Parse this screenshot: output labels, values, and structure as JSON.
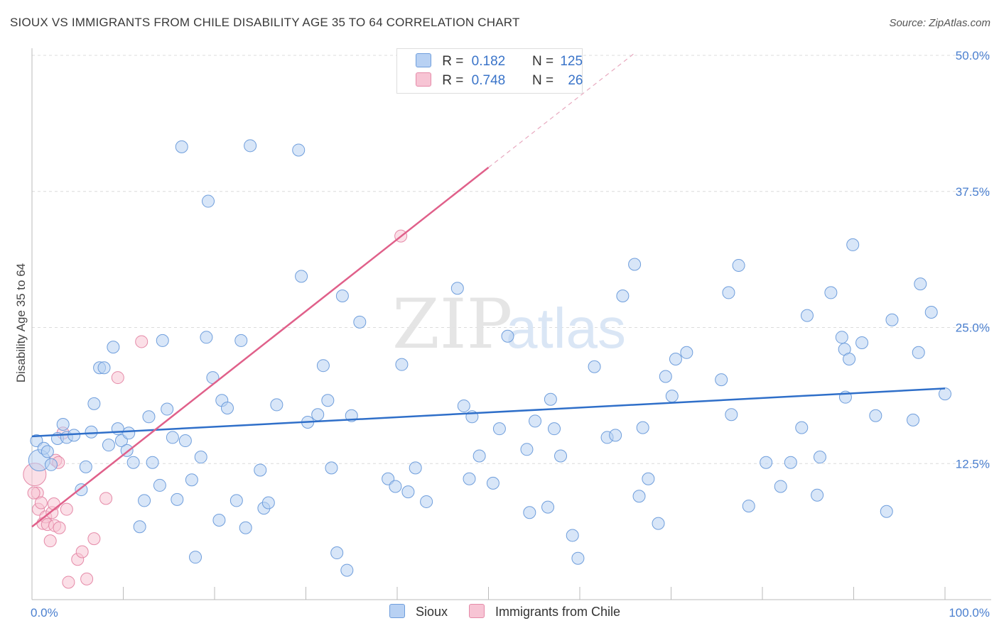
{
  "header": {
    "title": "SIOUX VS IMMIGRANTS FROM CHILE DISABILITY AGE 35 TO 64 CORRELATION CHART",
    "source": "Source: ZipAtlas.com"
  },
  "watermark": {
    "zip": "ZIP",
    "atlas": "atlas"
  },
  "legend": {
    "rows": [
      {
        "r_label": "R =",
        "r_value": "0.182",
        "n_label": "N =",
        "n_value": "125"
      },
      {
        "r_label": "R =",
        "r_value": "0.748",
        "n_label": "N =",
        "n_value": "26"
      }
    ]
  },
  "bottom_legend": {
    "sioux": "Sioux",
    "chile": "Immigrants from Chile"
  },
  "colors": {
    "sioux_fill": "#b8d1f3",
    "sioux_stroke": "#6f9edc",
    "sioux_line": "#2f6fc9",
    "chile_fill": "#f7c4d4",
    "chile_stroke": "#e58aa8",
    "chile_line": "#e0608a",
    "grid": "#dcdcdc",
    "tick_text": "#4a7fcf"
  },
  "chart_data": {
    "type": "scatter",
    "title": "SIOUX VS IMMIGRANTS FROM CHILE DISABILITY AGE 35 TO 64 CORRELATION CHART",
    "xlabel": "",
    "ylabel": "Disability Age 35 to 64",
    "xlim": [
      0,
      100
    ],
    "ylim": [
      0,
      50
    ],
    "x_tick_labels": [
      "0.0%",
      "100.0%"
    ],
    "y_ticks": [
      12.5,
      25.0,
      37.5,
      50.0
    ],
    "y_tick_labels": [
      "12.5%",
      "25.0%",
      "37.5%",
      "50.0%"
    ],
    "series": [
      {
        "name": "Sioux",
        "r": 0.182,
        "n": 125,
        "trend": {
          "x": [
            0,
            100
          ],
          "y": [
            15.0,
            19.4
          ]
        },
        "points": [
          [
            0.5,
            14.6
          ],
          [
            0.8,
            12.8
          ],
          [
            1.3,
            13.9
          ],
          [
            1.7,
            13.6
          ],
          [
            2.1,
            12.4
          ],
          [
            2.8,
            14.8
          ],
          [
            3.4,
            16.1
          ],
          [
            3.8,
            14.9
          ],
          [
            4.6,
            15.1
          ],
          [
            5.4,
            10.1
          ],
          [
            5.9,
            12.2
          ],
          [
            6.5,
            15.4
          ],
          [
            6.8,
            18.0
          ],
          [
            7.4,
            21.3
          ],
          [
            7.9,
            21.3
          ],
          [
            8.4,
            14.2
          ],
          [
            8.9,
            23.2
          ],
          [
            9.4,
            15.7
          ],
          [
            9.8,
            14.6
          ],
          [
            10.4,
            13.7
          ],
          [
            10.6,
            15.3
          ],
          [
            11.1,
            12.6
          ],
          [
            11.8,
            6.7
          ],
          [
            12.3,
            9.1
          ],
          [
            12.8,
            16.8
          ],
          [
            13.2,
            12.6
          ],
          [
            14.0,
            10.5
          ],
          [
            14.3,
            23.8
          ],
          [
            14.8,
            17.5
          ],
          [
            15.4,
            14.9
          ],
          [
            15.9,
            9.2
          ],
          [
            16.4,
            41.6
          ],
          [
            16.8,
            14.6
          ],
          [
            17.5,
            11.0
          ],
          [
            17.9,
            3.9
          ],
          [
            18.5,
            13.1
          ],
          [
            19.1,
            24.1
          ],
          [
            19.3,
            36.6
          ],
          [
            19.8,
            20.4
          ],
          [
            20.5,
            7.3
          ],
          [
            20.8,
            18.3
          ],
          [
            21.4,
            17.6
          ],
          [
            22.4,
            9.1
          ],
          [
            22.9,
            23.8
          ],
          [
            23.4,
            6.6
          ],
          [
            23.9,
            41.7
          ],
          [
            25.0,
            11.9
          ],
          [
            25.4,
            8.4
          ],
          [
            25.9,
            8.9
          ],
          [
            26.8,
            17.9
          ],
          [
            29.2,
            41.3
          ],
          [
            29.5,
            29.7
          ],
          [
            30.2,
            16.3
          ],
          [
            31.3,
            17.0
          ],
          [
            31.9,
            21.5
          ],
          [
            32.4,
            18.3
          ],
          [
            32.8,
            12.1
          ],
          [
            33.4,
            4.3
          ],
          [
            34.0,
            27.9
          ],
          [
            34.5,
            2.7
          ],
          [
            35.0,
            16.9
          ],
          [
            35.9,
            25.5
          ],
          [
            39.0,
            11.1
          ],
          [
            39.8,
            10.4
          ],
          [
            40.5,
            21.6
          ],
          [
            41.2,
            9.9
          ],
          [
            42.0,
            12.1
          ],
          [
            43.2,
            9.0
          ],
          [
            46.6,
            28.6
          ],
          [
            47.3,
            17.8
          ],
          [
            47.9,
            11.1
          ],
          [
            48.2,
            16.8
          ],
          [
            49.0,
            13.2
          ],
          [
            50.5,
            10.7
          ],
          [
            51.2,
            15.7
          ],
          [
            52.1,
            24.2
          ],
          [
            54.2,
            13.8
          ],
          [
            54.5,
            8.0
          ],
          [
            55.1,
            16.4
          ],
          [
            56.5,
            8.5
          ],
          [
            56.8,
            18.4
          ],
          [
            57.2,
            15.7
          ],
          [
            57.9,
            13.2
          ],
          [
            59.2,
            5.9
          ],
          [
            59.8,
            3.8
          ],
          [
            61.6,
            21.4
          ],
          [
            63.0,
            14.9
          ],
          [
            63.9,
            15.1
          ],
          [
            64.7,
            27.9
          ],
          [
            66.0,
            30.8
          ],
          [
            66.5,
            9.5
          ],
          [
            66.9,
            15.8
          ],
          [
            67.5,
            11.1
          ],
          [
            68.6,
            7.0
          ],
          [
            69.4,
            20.5
          ],
          [
            70.1,
            18.7
          ],
          [
            70.5,
            22.1
          ],
          [
            71.7,
            22.7
          ],
          [
            75.5,
            20.2
          ],
          [
            76.3,
            28.2
          ],
          [
            76.6,
            17.0
          ],
          [
            77.4,
            30.7
          ],
          [
            78.5,
            8.6
          ],
          [
            80.4,
            12.6
          ],
          [
            82.0,
            10.4
          ],
          [
            83.1,
            12.6
          ],
          [
            84.3,
            15.8
          ],
          [
            84.9,
            26.1
          ],
          [
            86.0,
            9.6
          ],
          [
            86.3,
            13.1
          ],
          [
            87.5,
            28.2
          ],
          [
            89.1,
            18.6
          ],
          [
            88.7,
            24.1
          ],
          [
            89.0,
            23.0
          ],
          [
            89.5,
            22.1
          ],
          [
            89.9,
            32.6
          ],
          [
            90.9,
            23.6
          ],
          [
            92.4,
            16.9
          ],
          [
            93.6,
            8.1
          ],
          [
            94.2,
            25.7
          ],
          [
            96.5,
            16.5
          ],
          [
            97.3,
            29.0
          ],
          [
            97.1,
            22.7
          ],
          [
            98.5,
            26.4
          ],
          [
            100.0,
            18.9
          ]
        ]
      },
      {
        "name": "Immigrants from Chile",
        "r": 0.748,
        "n": 26,
        "trend": {
          "x": [
            0,
            50
          ],
          "y": [
            6.7,
            39.7
          ]
        },
        "trend_dashed": {
          "x": [
            50,
            66
          ],
          "y": [
            39.7,
            50.2
          ]
        },
        "points": [
          [
            0.3,
            11.5
          ],
          [
            0.6,
            9.8
          ],
          [
            0.7,
            8.3
          ],
          [
            1.0,
            8.9
          ],
          [
            1.2,
            7.0
          ],
          [
            1.5,
            7.6
          ],
          [
            1.7,
            6.9
          ],
          [
            2.0,
            5.4
          ],
          [
            2.2,
            8.0
          ],
          [
            2.4,
            8.8
          ],
          [
            2.5,
            6.8
          ],
          [
            2.6,
            12.8
          ],
          [
            2.9,
            12.6
          ],
          [
            3.0,
            6.6
          ],
          [
            3.4,
            15.3
          ],
          [
            3.8,
            8.3
          ],
          [
            4.0,
            1.6
          ],
          [
            5.0,
            3.7
          ],
          [
            5.5,
            4.4
          ],
          [
            6.0,
            1.9
          ],
          [
            6.8,
            5.6
          ],
          [
            8.1,
            9.3
          ],
          [
            9.4,
            20.4
          ],
          [
            12.0,
            23.7
          ],
          [
            40.4,
            33.4
          ],
          [
            0.2,
            9.8
          ]
        ]
      }
    ]
  }
}
